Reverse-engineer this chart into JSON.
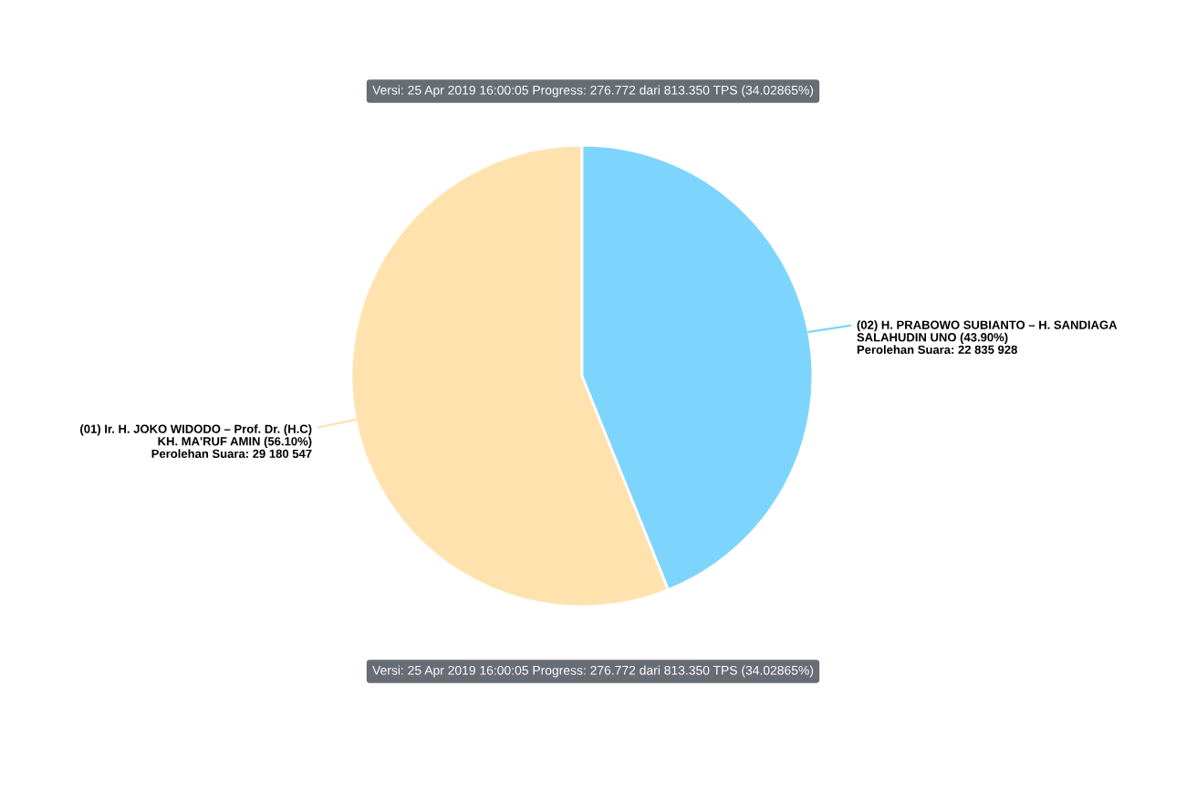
{
  "chart_data": {
    "type": "pie",
    "title": "Versi: 25 Apr 2019 16:00:05 Progress: 276.772 dari 813.350 TPS (34.02865%)",
    "categories": [
      "(01) Ir. H. JOKO WIDODO – Prof. Dr. (H.C)\nKH. MA'RUF AMIN (56.10%)",
      "(02) H. PRABOWO SUBIANTO – H. SANDIAGA\nSALAHUDIN UNO (43.90%)"
    ],
    "values": [
      29180547,
      22835928
    ],
    "value_labels": [
      "Perolehan Suara: 29 180 547",
      "Perolehan Suara: 22 835 928"
    ],
    "colors": [
      "#ffe2ad",
      "#7dd5fd"
    ],
    "annotations": [
      "Versi: 25 Apr 2019 16:00:05 Progress: 276.772 dari 813.350 TPS (34.02865%)"
    ]
  }
}
